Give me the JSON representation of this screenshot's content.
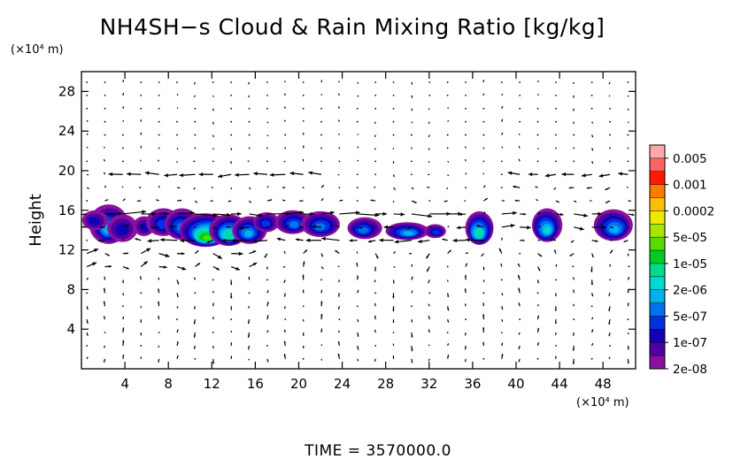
{
  "chart_data": {
    "type": "heatmap",
    "title": "NH4SH−s Cloud & Rain Mixing Ratio [kg/kg]",
    "ylabel": "Height",
    "x_unit": "(×10⁴ m)",
    "y_unit": "(×10⁴ m)",
    "xlim": [
      0,
      51
    ],
    "ylim": [
      0,
      30
    ],
    "x_ticks": [
      4,
      8,
      12,
      16,
      20,
      24,
      28,
      32,
      36,
      40,
      44,
      48
    ],
    "y_ticks": [
      4,
      8,
      12,
      16,
      20,
      24,
      28
    ],
    "footer": "TIME  =  3570000.0",
    "colorbar": {
      "labels": [
        "0.005",
        "0.001",
        "0.0002",
        "5e-05",
        "1e-05",
        "2e-06",
        "5e-07",
        "1e-07",
        "2e-08"
      ],
      "colors": [
        "#ffa8a8",
        "#ff6262",
        "#ff1a00",
        "#ff7a00",
        "#ffbe00",
        "#f0e800",
        "#a6e600",
        "#58dc00",
        "#00cc22",
        "#00dc8a",
        "#00d8d0",
        "#00b0f0",
        "#0072f0",
        "#0030e0",
        "#1000b8",
        "#5000a0",
        "#8a10a0"
      ]
    },
    "cloud_layer": [
      {
        "x": 2.5,
        "y": 14.6,
        "w": 1.8,
        "h": 2.0,
        "level": 6
      },
      {
        "x": 1.2,
        "y": 15.0,
        "w": 1.2,
        "h": 1.0,
        "level": 3
      },
      {
        "x": 3.8,
        "y": 14.2,
        "w": 1.4,
        "h": 1.4,
        "level": 3
      },
      {
        "x": 5.8,
        "y": 14.4,
        "w": 1.0,
        "h": 1.0,
        "level": 3
      },
      {
        "x": 7.5,
        "y": 14.8,
        "w": 1.6,
        "h": 1.4,
        "level": 4
      },
      {
        "x": 9.2,
        "y": 14.6,
        "w": 1.6,
        "h": 1.6,
        "level": 5
      },
      {
        "x": 11.5,
        "y": 14.0,
        "w": 2.4,
        "h": 1.7,
        "level": 10
      },
      {
        "x": 13.6,
        "y": 14.0,
        "w": 1.8,
        "h": 1.6,
        "level": 8
      },
      {
        "x": 15.4,
        "y": 14.0,
        "w": 1.6,
        "h": 1.4,
        "level": 6
      },
      {
        "x": 17.0,
        "y": 14.8,
        "w": 1.2,
        "h": 1.0,
        "level": 4
      },
      {
        "x": 19.5,
        "y": 14.8,
        "w": 1.6,
        "h": 1.2,
        "level": 5
      },
      {
        "x": 22.0,
        "y": 14.6,
        "w": 1.8,
        "h": 1.3,
        "level": 5
      },
      {
        "x": 26.0,
        "y": 14.2,
        "w": 1.6,
        "h": 1.1,
        "level": 5
      },
      {
        "x": 30.0,
        "y": 13.9,
        "w": 2.0,
        "h": 0.9,
        "level": 6
      },
      {
        "x": 32.6,
        "y": 13.9,
        "w": 1.0,
        "h": 0.7,
        "level": 4
      },
      {
        "x": 36.6,
        "y": 14.2,
        "w": 1.3,
        "h": 1.7,
        "level": 8
      },
      {
        "x": 42.8,
        "y": 14.5,
        "w": 1.4,
        "h": 1.7,
        "level": 7
      },
      {
        "x": 49.0,
        "y": 14.5,
        "w": 1.8,
        "h": 1.6,
        "level": 6
      }
    ],
    "wind_jets": [
      {
        "y": 19.8,
        "x0": 3,
        "x1": 23,
        "u": -1
      },
      {
        "y": 15.6,
        "x0": 2,
        "x1": 34,
        "u": 1
      },
      {
        "y": 13.3,
        "x0": 4,
        "x1": 38,
        "u": -1
      },
      {
        "y": 11.0,
        "x0": 0,
        "x1": 16,
        "u": 1
      },
      {
        "y": 19.2,
        "x0": 40,
        "x1": 51,
        "u": -1
      },
      {
        "y": 15.0,
        "x0": 38,
        "x1": 51,
        "u": 1
      }
    ]
  }
}
